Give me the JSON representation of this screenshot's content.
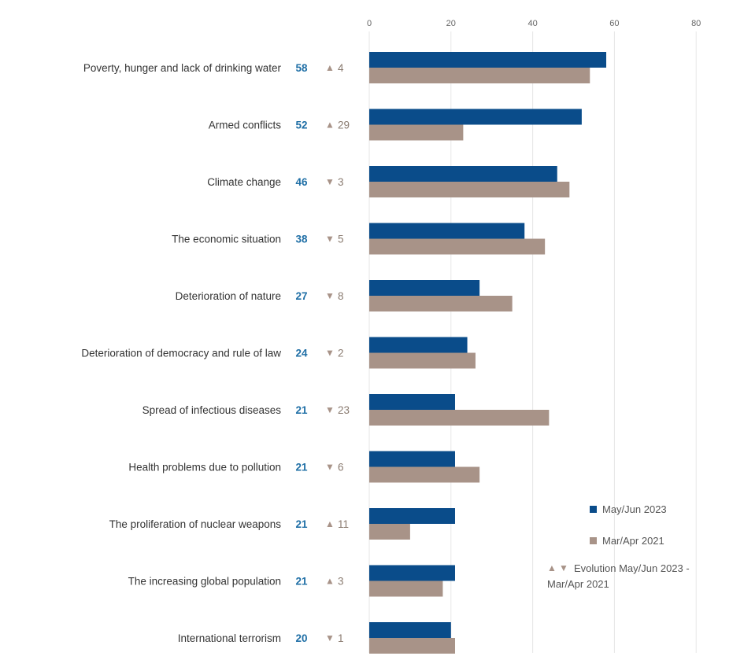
{
  "chart_data": {
    "type": "bar",
    "orientation": "horizontal",
    "xlim": [
      0,
      80
    ],
    "ticks": [
      0,
      20,
      40,
      60,
      80
    ],
    "grid": true,
    "legend_position": "bottom-right",
    "colors": {
      "May/Jun 2023": "#0a4c8a",
      "Mar/Apr 2021": "#a89388",
      "value_text": "#1f6fa6",
      "change_text": "#8a7b70"
    },
    "categories": [
      "Poverty, hunger and lack of drinking water",
      "Armed conflicts",
      "Climate change",
      "The economic situation",
      "Deterioration of nature",
      "Deterioration of democracy and rule of law",
      "Spread of infectious diseases",
      "Health problems due to pollution",
      "The proliferation of nuclear weapons",
      "The increasing global population",
      "International terrorism"
    ],
    "series": [
      {
        "name": "May/Jun 2023",
        "values": [
          58,
          52,
          46,
          38,
          27,
          24,
          21,
          21,
          21,
          21,
          20
        ]
      },
      {
        "name": "Mar/Apr 2021",
        "values": [
          54,
          23,
          49,
          43,
          35,
          26,
          44,
          27,
          10,
          18,
          21
        ]
      }
    ],
    "value_labels": [
      "58",
      "52",
      "46",
      "38",
      "27",
      "24",
      "21",
      "21",
      "21",
      "21",
      "20"
    ],
    "change_labels": [
      "4",
      "29",
      "3",
      "5",
      "8",
      "2",
      "23",
      "6",
      "11",
      "3",
      "1"
    ],
    "change_directions": [
      "up",
      "up",
      "down",
      "down",
      "down",
      "down",
      "down",
      "down",
      "up",
      "up",
      "down"
    ],
    "legend": {
      "series_2023": "May/Jun 2023",
      "series_2021": "Mar/Apr 2021",
      "evolution_line1": "Evolution May/Jun 2023 -",
      "evolution_line2": "Mar/Apr 2021"
    }
  }
}
